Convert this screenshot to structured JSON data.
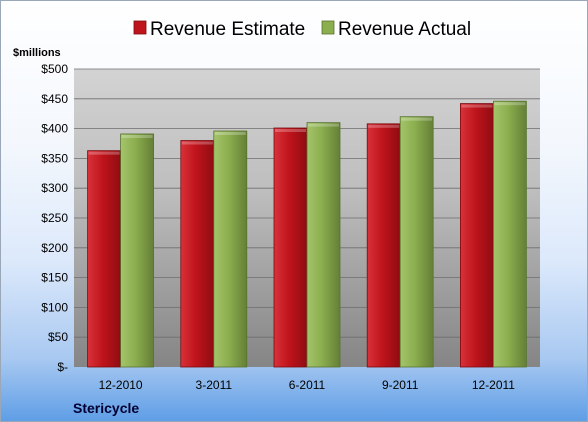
{
  "chart_data": {
    "type": "bar",
    "ylabel": "$millions",
    "categories": [
      "12-2010",
      "3-2011",
      "6-2011",
      "9-2011",
      "12-2011"
    ],
    "series": [
      {
        "name": "Revenue Estimate",
        "color": "#c0141c",
        "values": [
          363,
          380,
          401,
          408,
          442
        ]
      },
      {
        "name": "Revenue Actual",
        "color": "#8bae4e",
        "values": [
          391,
          396,
          410,
          420,
          446
        ]
      }
    ],
    "ylim": [
      0,
      500
    ],
    "yticks": [
      0,
      50,
      100,
      150,
      200,
      250,
      300,
      350,
      400,
      450,
      500
    ],
    "ytick_labels": [
      "$-",
      "$50",
      "$100",
      "$150",
      "$200",
      "$250",
      "$300",
      "$350",
      "$400",
      "$450",
      "$500"
    ],
    "grid": true,
    "legend_position": "top"
  },
  "footer": {
    "company": "Stericycle"
  }
}
